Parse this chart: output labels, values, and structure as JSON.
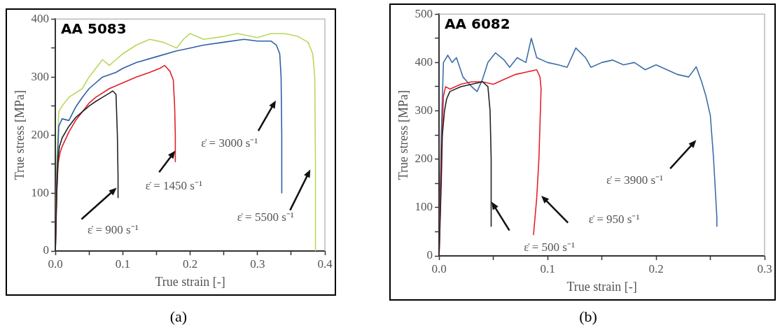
{
  "chart_data": [
    {
      "type": "line",
      "title": "AA 5083",
      "xlabel": "True strain [-]",
      "ylabel": "True stress [MPa]",
      "marker": "none",
      "line_style": "solid",
      "grid": false,
      "xlim": [
        0,
        0.4
      ],
      "xticks": [
        {
          "value": 0,
          "label": "0.0"
        },
        {
          "value": 0.05,
          "label": null
        },
        0.1,
        {
          "value": 0.15,
          "label": null
        },
        0.2,
        {
          "value": 0.25,
          "label": null
        },
        0.3,
        {
          "value": 0.35,
          "label": null
        },
        0.4
      ],
      "ylim": [
        0,
        400
      ],
      "yticks": [
        0,
        {
          "value": 50,
          "label": null
        },
        100,
        {
          "value": 150,
          "label": null
        },
        200,
        {
          "value": 250,
          "label": null
        },
        300,
        {
          "value": 350,
          "label": null
        },
        400
      ],
      "series": [
        {
          "color": "#222222",
          "x": [
            0,
            0.002,
            0.004,
            0.006,
            0.01,
            0.015,
            0.02,
            0.03,
            0.04,
            0.05,
            0.06,
            0.07,
            0.08,
            0.085,
            0.09,
            0.092,
            0.093,
            0.093
          ],
          "values": [
            0,
            100,
            160,
            180,
            195,
            205,
            215,
            230,
            240,
            250,
            258,
            265,
            272,
            276,
            270,
            200,
            130,
            92
          ]
        },
        {
          "color": "#e0202a",
          "x": [
            0,
            0.002,
            0.004,
            0.007,
            0.01,
            0.02,
            0.03,
            0.04,
            0.05,
            0.06,
            0.08,
            0.1,
            0.12,
            0.14,
            0.155,
            0.162,
            0.17,
            0.175,
            0.177,
            0.178,
            0.178
          ],
          "values": [
            0,
            100,
            150,
            170,
            180,
            205,
            225,
            240,
            255,
            265,
            280,
            290,
            300,
            308,
            315,
            320,
            310,
            295,
            250,
            200,
            154
          ]
        },
        {
          "color": "#2f5fa8",
          "x": [
            0,
            0.002,
            0.005,
            0.01,
            0.02,
            0.03,
            0.04,
            0.05,
            0.07,
            0.09,
            0.1,
            0.12,
            0.15,
            0.18,
            0.2,
            0.22,
            0.25,
            0.28,
            0.3,
            0.32,
            0.328,
            0.333,
            0.335,
            0.336,
            0.336
          ],
          "values": [
            0,
            120,
            215,
            228,
            225,
            248,
            265,
            280,
            300,
            308,
            315,
            325,
            335,
            345,
            350,
            355,
            360,
            365,
            362,
            362,
            355,
            340,
            300,
            200,
            100
          ]
        },
        {
          "color": "#b8d85a",
          "x": [
            0,
            0.002,
            0.005,
            0.01,
            0.02,
            0.04,
            0.05,
            0.06,
            0.07,
            0.08,
            0.09,
            0.1,
            0.12,
            0.14,
            0.16,
            0.18,
            0.19,
            0.2,
            0.22,
            0.25,
            0.27,
            0.3,
            0.32,
            0.34,
            0.36,
            0.375,
            0.382,
            0.385,
            0.386,
            0.386
          ],
          "values": [
            0,
            150,
            240,
            250,
            265,
            280,
            300,
            315,
            330,
            320,
            330,
            340,
            355,
            365,
            360,
            350,
            365,
            375,
            365,
            370,
            375,
            368,
            375,
            375,
            370,
            360,
            340,
            300,
            150,
            0
          ]
        }
      ],
      "annotations": [
        {
          "text": "ε̇ = 900 s⁻¹",
          "x": 0.091,
          "y": 109
        },
        {
          "text": "ε̇ = 1450 s⁻¹",
          "x": 0.178,
          "y": 173
        },
        "ε̇ = 3000 s⁻¹",
        "ε̇ = 5500 s⁻¹",
        "(a)"
      ]
    },
    {
      "type": "line",
      "title": "AA 6082",
      "xlabel": "True strain [-]",
      "ylabel": "True stress [MPa]",
      "marker": "none",
      "line_style": "solid",
      "grid": false,
      "xlim": [
        0,
        0.3
      ],
      "xticks": [
        {
          "value": 0,
          "label": "0.0"
        },
        {
          "value": 0.05,
          "label": null
        },
        0.1,
        {
          "value": 0.15,
          "label": null
        },
        0.2,
        {
          "value": 0.25,
          "label": null
        },
        0.3
      ],
      "ylim": [
        0,
        500
      ],
      "yticks": [
        0,
        {
          "value": 50,
          "label": null
        },
        100,
        {
          "value": 150,
          "label": null
        },
        200,
        {
          "value": 250,
          "label": null
        },
        300,
        {
          "value": 350,
          "label": null
        },
        400,
        {
          "value": 450,
          "label": null
        },
        500
      ],
      "series": [
        {
          "color": "#222222",
          "x": [
            0,
            0.002,
            0.003,
            0.005,
            0.007,
            0.01,
            0.02,
            0.03,
            0.04,
            0.045,
            0.047,
            0.048,
            0.048
          ],
          "values": [
            0,
            150,
            250,
            300,
            325,
            340,
            350,
            355,
            360,
            350,
            300,
            200,
            61
          ]
        },
        {
          "color": "#e8202a",
          "x": [
            0,
            0.002,
            0.004,
            0.006,
            0.01,
            0.02,
            0.03,
            0.04,
            0.05,
            0.06,
            0.07,
            0.08,
            0.09,
            0.093,
            0.094,
            0.092,
            0.09,
            0.087
          ],
          "values": [
            0,
            200,
            330,
            350,
            345,
            355,
            360,
            360,
            355,
            365,
            375,
            380,
            385,
            370,
            345,
            200,
            120,
            43
          ]
        },
        {
          "color": "#3c6ea8",
          "x": [
            0,
            0.002,
            0.004,
            0.008,
            0.012,
            0.016,
            0.022,
            0.03,
            0.035,
            0.04,
            0.045,
            0.052,
            0.06,
            0.065,
            0.072,
            0.08,
            0.085,
            0.09,
            0.1,
            0.11,
            0.118,
            0.126,
            0.135,
            0.14,
            0.15,
            0.16,
            0.17,
            0.18,
            0.19,
            0.2,
            0.21,
            0.22,
            0.23,
            0.237,
            0.242,
            0.246,
            0.25,
            0.253,
            0.255,
            0.256,
            0.256
          ],
          "values": [
            0,
            250,
            400,
            415,
            400,
            410,
            370,
            350,
            340,
            365,
            400,
            420,
            405,
            390,
            410,
            400,
            450,
            410,
            400,
            395,
            390,
            430,
            410,
            390,
            400,
            405,
            395,
            400,
            385,
            395,
            385,
            375,
            370,
            391,
            360,
            330,
            290,
            200,
            120,
            80,
            61
          ]
        }
      ],
      "annotations": [
        "ε̇ = 500 s⁻¹",
        "ε̇ = 950 s⁻¹",
        "ε̇ = 3900 s⁻¹",
        "(b)"
      ]
    }
  ]
}
